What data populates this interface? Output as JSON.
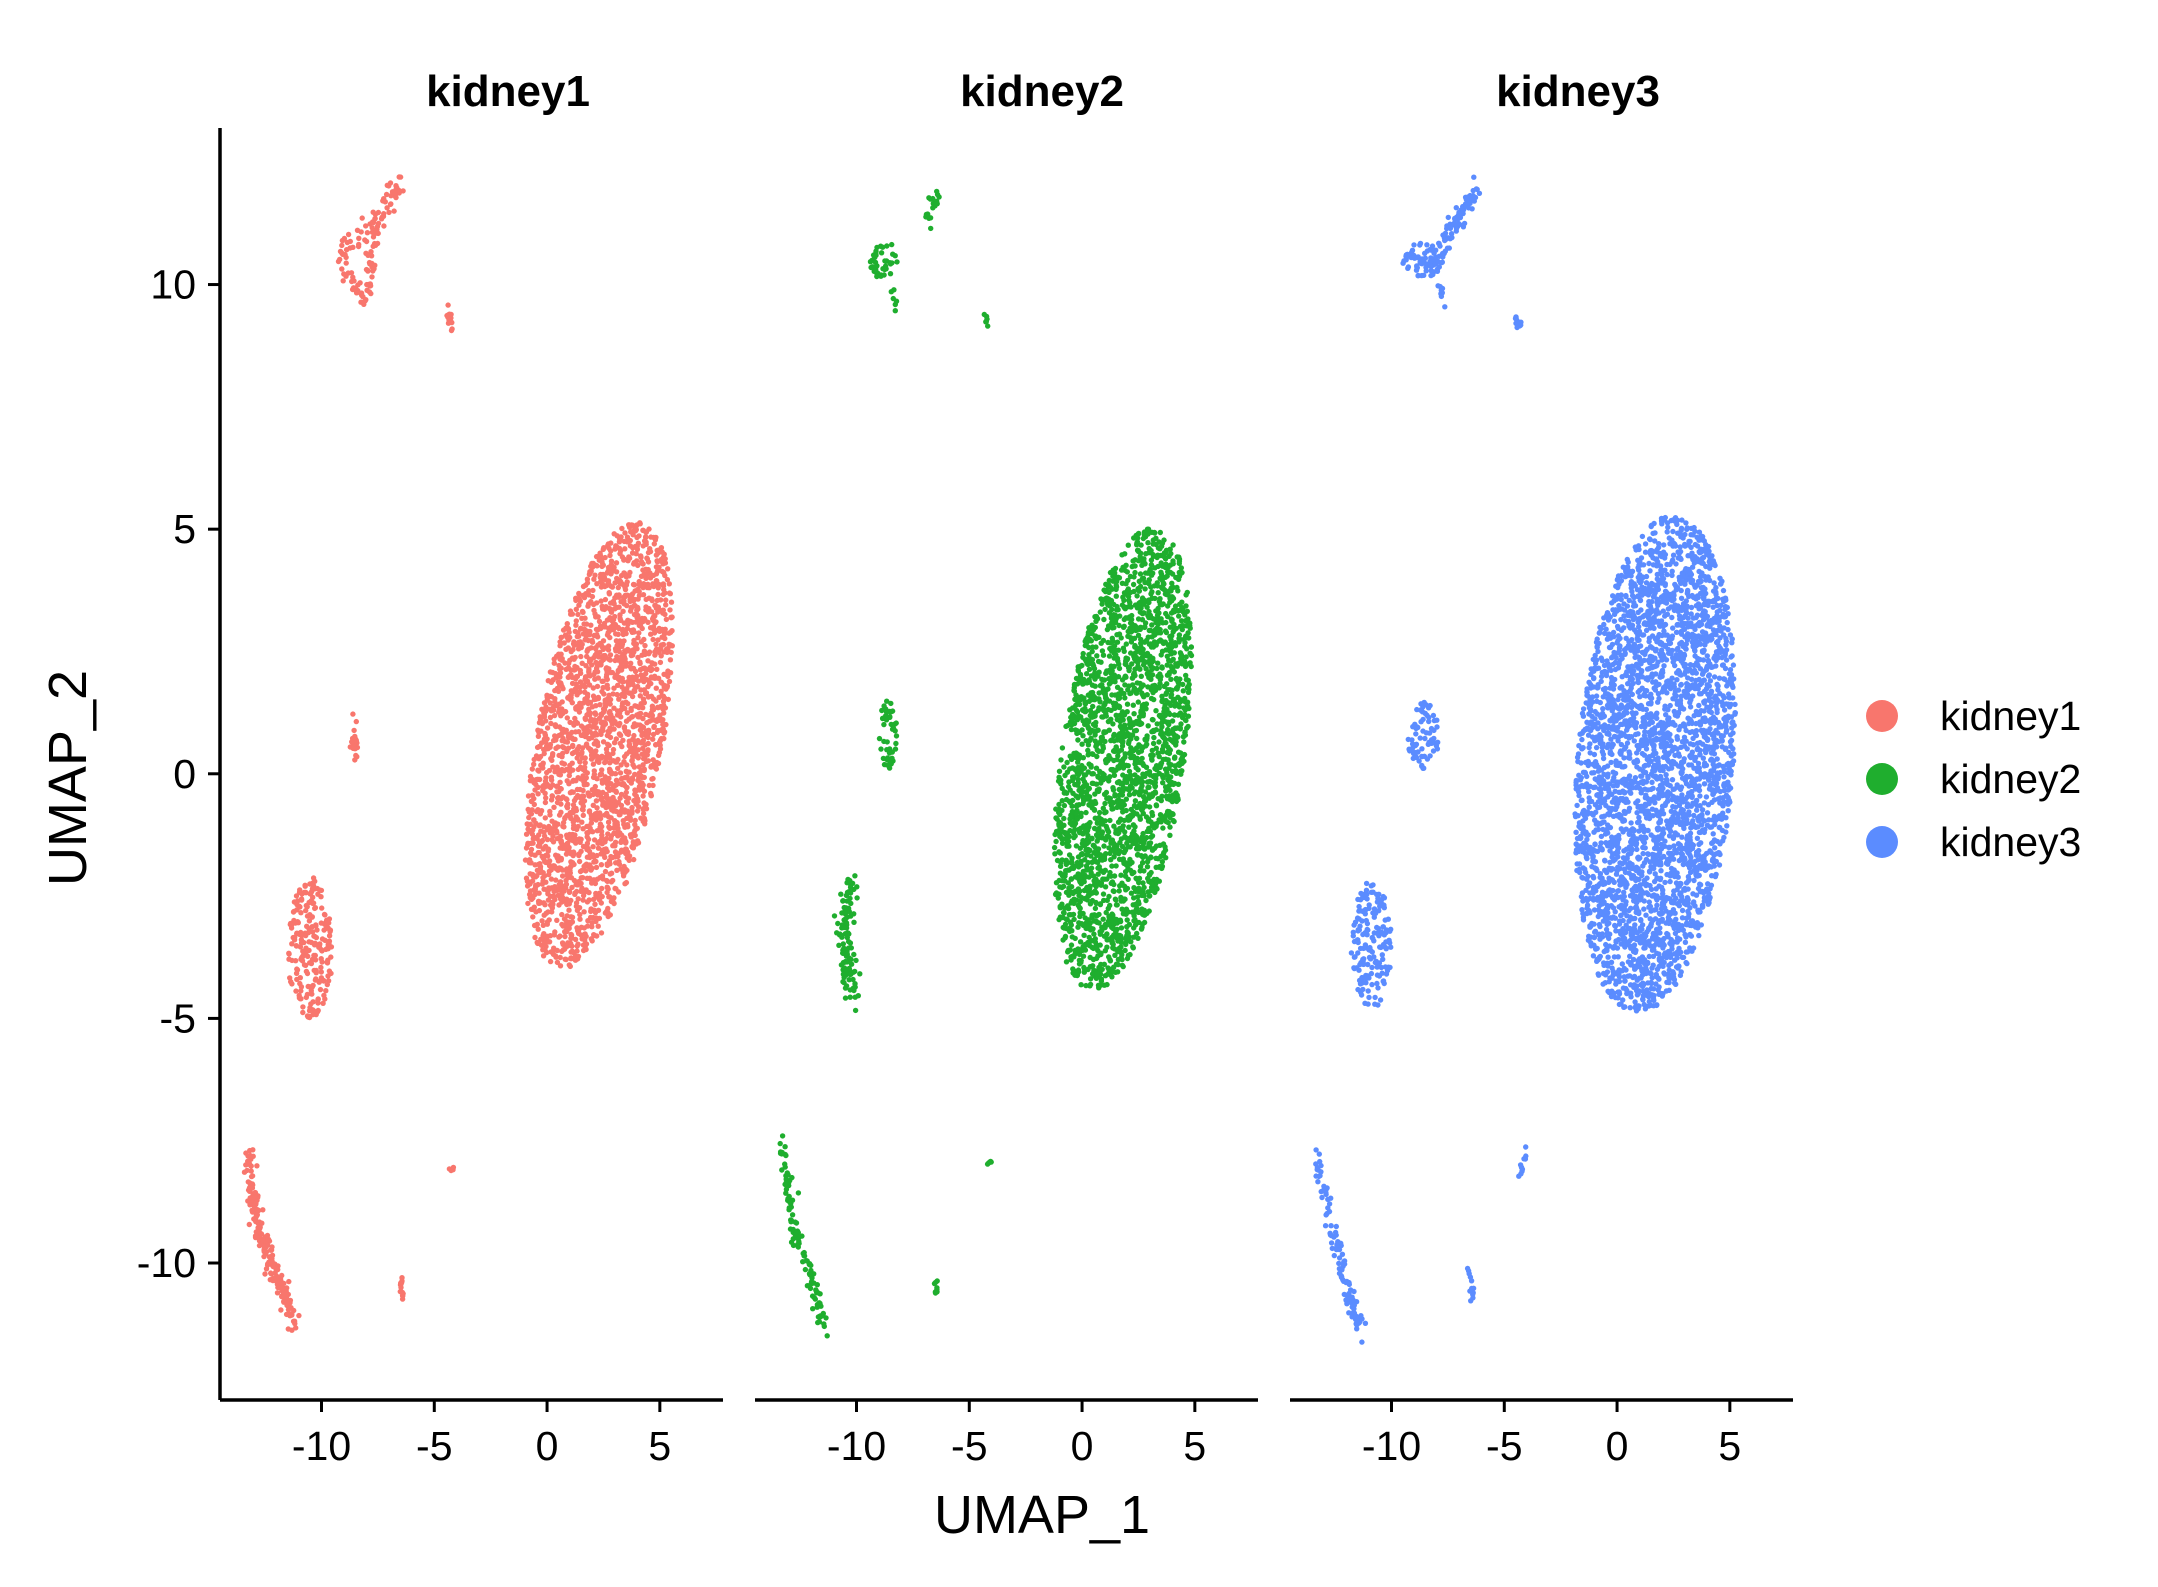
{
  "chart_data": {
    "type": "scatter",
    "facets": [
      "kidney1",
      "kidney2",
      "kidney3"
    ],
    "xlabel": "UMAP_1",
    "ylabel": "UMAP_2",
    "xlim": [
      -14.5,
      7.8
    ],
    "ylim": [
      -12.8,
      13.2
    ],
    "xticks": [
      -10,
      -5,
      0,
      5
    ],
    "xtick_labels": [
      "-10",
      "-5",
      "0",
      "5"
    ],
    "yticks": [
      -10,
      -5,
      0,
      5,
      10
    ],
    "ytick_labels": [
      "-10",
      "-5",
      "0",
      "5",
      "10"
    ],
    "grid": false,
    "legend": {
      "position": "right",
      "entries": [
        {
          "label": "kidney1",
          "color": "#F8766D"
        },
        {
          "label": "kidney2",
          "color": "#1FAE2E"
        },
        {
          "label": "kidney3",
          "color": "#5B8CFF"
        }
      ]
    },
    "series": [
      {
        "name": "kidney1",
        "color": "#F8766D",
        "clusters": [
          {
            "kind": "path",
            "pts": [
              [
                -9.2,
                10.7
              ],
              [
                -8.3,
                10.9
              ],
              [
                -7.6,
                11.3
              ],
              [
                -6.9,
                11.8
              ],
              [
                -6.5,
                12.0
              ]
            ],
            "spread": 0.35,
            "n": 70
          },
          {
            "kind": "path",
            "pts": [
              [
                -9.2,
                10.6
              ],
              [
                -8.7,
                10.0
              ],
              [
                -8.1,
                9.7
              ],
              [
                -7.8,
                10.4
              ],
              [
                -7.5,
                11.1
              ]
            ],
            "spread": 0.3,
            "n": 60
          },
          {
            "kind": "path",
            "pts": [
              [
                -4.5,
                9.5
              ],
              [
                -4.2,
                9.1
              ]
            ],
            "spread": 0.15,
            "n": 16
          },
          {
            "kind": "path",
            "pts": [
              [
                -8.6,
                1.2
              ],
              [
                -8.5,
                0.3
              ]
            ],
            "spread": 0.2,
            "n": 22
          },
          {
            "kind": "ellipse",
            "cx": -10.5,
            "cy": -3.6,
            "rx": 1.0,
            "ry": 1.4,
            "n": 220
          },
          {
            "kind": "path",
            "pts": [
              [
                -10.3,
                -2.0
              ],
              [
                -10.4,
                -2.6
              ]
            ],
            "spread": 0.1,
            "n": 6
          },
          {
            "kind": "path",
            "pts": [
              [
                -13.3,
                -7.7
              ],
              [
                -12.8,
                -9.3
              ],
              [
                -12.0,
                -10.3
              ],
              [
                -11.2,
                -11.3
              ]
            ],
            "spread": 0.32,
            "n": 200
          },
          {
            "kind": "path",
            "pts": [
              [
                -4.3,
                -8.1
              ],
              [
                -4.1,
                -8.1
              ]
            ],
            "spread": 0.08,
            "n": 5
          },
          {
            "kind": "path",
            "pts": [
              [
                -6.5,
                -10.3
              ],
              [
                -6.4,
                -10.7
              ]
            ],
            "spread": 0.15,
            "n": 14
          },
          {
            "kind": "ellipse",
            "cx": 2.3,
            "cy": 0.6,
            "rx": 2.6,
            "ry": 5.0,
            "rot": -28,
            "n": 2300
          }
        ]
      },
      {
        "name": "kidney2",
        "color": "#1FAE2E",
        "clusters": [
          {
            "kind": "ellipse",
            "cx": -8.8,
            "cy": 10.5,
            "rx": 0.6,
            "ry": 0.4,
            "n": 40
          },
          {
            "kind": "path",
            "pts": [
              [
                -6.9,
                11.3
              ],
              [
                -6.3,
                11.9
              ]
            ],
            "spread": 0.25,
            "n": 18
          },
          {
            "kind": "path",
            "pts": [
              [
                -8.5,
                10.0
              ],
              [
                -8.2,
                9.5
              ]
            ],
            "spread": 0.15,
            "n": 6
          },
          {
            "kind": "path",
            "pts": [
              [
                -4.3,
                9.4
              ],
              [
                -4.2,
                9.2
              ]
            ],
            "spread": 0.1,
            "n": 6
          },
          {
            "kind": "ellipse",
            "cx": -8.6,
            "cy": 0.8,
            "rx": 0.4,
            "ry": 0.7,
            "n": 45
          },
          {
            "kind": "path",
            "pts": [
              [
                -10.3,
                -2.2
              ],
              [
                -10.5,
                -3.5
              ],
              [
                -10.2,
                -4.5
              ]
            ],
            "spread": 0.45,
            "n": 110
          },
          {
            "kind": "path",
            "pts": [
              [
                -13.3,
                -7.6
              ],
              [
                -12.8,
                -9.3
              ],
              [
                -12.0,
                -10.3
              ],
              [
                -11.5,
                -11.3
              ]
            ],
            "spread": 0.3,
            "n": 110
          },
          {
            "kind": "path",
            "pts": [
              [
                -4.2,
                -8.0
              ],
              [
                -4.0,
                -7.9
              ]
            ],
            "spread": 0.08,
            "n": 5
          },
          {
            "kind": "path",
            "pts": [
              [
                -6.5,
                -10.4
              ],
              [
                -6.4,
                -10.7
              ]
            ],
            "spread": 0.12,
            "n": 8
          },
          {
            "kind": "ellipse",
            "cx": 1.8,
            "cy": 0.3,
            "rx": 2.6,
            "ry": 5.0,
            "rot": -22,
            "n": 2400
          }
        ]
      },
      {
        "name": "kidney3",
        "color": "#5B8CFF",
        "clusters": [
          {
            "kind": "ellipse",
            "cx": -8.6,
            "cy": 10.5,
            "rx": 0.9,
            "ry": 0.35,
            "n": 70
          },
          {
            "kind": "path",
            "pts": [
              [
                -7.9,
                10.7
              ],
              [
                -7.1,
                11.3
              ],
              [
                -6.3,
                11.9
              ]
            ],
            "spread": 0.3,
            "n": 80
          },
          {
            "kind": "path",
            "pts": [
              [
                -7.8,
                10.0
              ],
              [
                -7.7,
                9.6
              ]
            ],
            "spread": 0.15,
            "n": 8
          },
          {
            "kind": "path",
            "pts": [
              [
                -4.5,
                9.3
              ],
              [
                -4.3,
                9.2
              ]
            ],
            "spread": 0.12,
            "n": 12
          },
          {
            "kind": "ellipse",
            "cx": -8.6,
            "cy": 0.8,
            "rx": 0.7,
            "ry": 0.7,
            "n": 70
          },
          {
            "kind": "ellipse",
            "cx": -10.9,
            "cy": -3.5,
            "rx": 0.9,
            "ry": 1.3,
            "n": 170
          },
          {
            "kind": "path",
            "pts": [
              [
                -13.2,
                -7.9
              ],
              [
                -12.6,
                -9.4
              ],
              [
                -12.0,
                -10.5
              ],
              [
                -11.4,
                -11.3
              ]
            ],
            "spread": 0.32,
            "n": 110
          },
          {
            "kind": "path",
            "pts": [
              [
                -4.0,
                -7.7
              ],
              [
                -4.3,
                -8.2
              ]
            ],
            "spread": 0.15,
            "n": 10
          },
          {
            "kind": "path",
            "pts": [
              [
                -6.6,
                -10.1
              ],
              [
                -6.4,
                -10.7
              ]
            ],
            "spread": 0.15,
            "n": 12
          },
          {
            "kind": "ellipse",
            "cx": 1.7,
            "cy": 0.2,
            "rx": 3.4,
            "ry": 5.2,
            "rot": -16,
            "n": 3400
          }
        ]
      }
    ]
  }
}
